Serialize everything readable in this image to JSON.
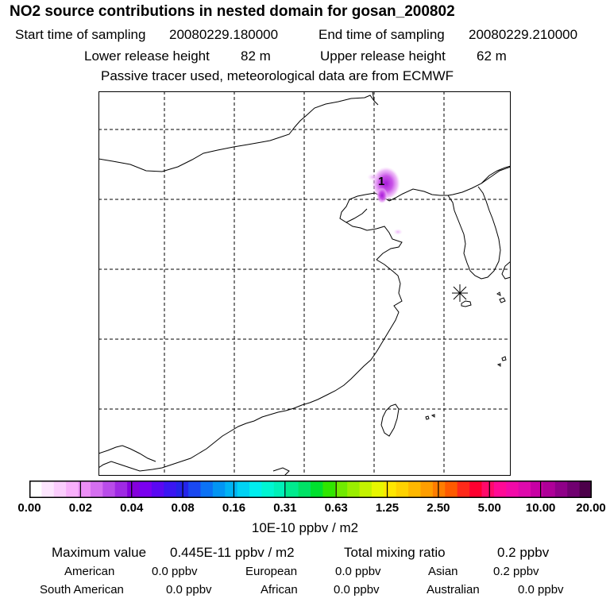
{
  "header": {
    "title": "NO2 source contributions in nested domain for gosan_200802",
    "start_label": "Start time of sampling",
    "start_value": "20080229.180000",
    "end_label": "End time of sampling",
    "end_value": "20080229.210000",
    "lower_label": "Lower release height",
    "lower_value": "82 m",
    "upper_label": "Upper release height",
    "upper_value": "62 m",
    "tracer_note": "Passive tracer used, meteorological data are from ECMWF"
  },
  "map": {
    "marker_label": "1",
    "receptor_symbol": "star"
  },
  "colorbar": {
    "tick_labels": [
      "0.00",
      "0.02",
      "0.04",
      "0.08",
      "0.16",
      "0.31",
      "0.63",
      "1.25",
      "2.50",
      "5.00",
      "10.00",
      "20.00"
    ],
    "colors": [
      "#ffffff",
      "#fde6fe",
      "#fbcdfd",
      "#f8b0fb",
      "#ec8ff6",
      "#d56ff0",
      "#b94ce9",
      "#9f2ae3",
      "#8500dd",
      "#7a00ef",
      "#5a08f2",
      "#3a16f2",
      "#2424ea",
      "#1a48f0",
      "#0b72f4",
      "#0395f3",
      "#00b3f4",
      "#00d2f4",
      "#00eeee",
      "#00f5d2",
      "#00f0b8",
      "#00eb8e",
      "#00e266",
      "#00e02e",
      "#30e600",
      "#70ea00",
      "#9aee00",
      "#c4f300",
      "#e8f700",
      "#ffe600",
      "#ffd200",
      "#ffb800",
      "#ff9e00",
      "#ff7d00",
      "#ff5a00",
      "#ff2a1a",
      "#ff0030",
      "#ff0a6a",
      "#ff0a96",
      "#f20aa8",
      "#de0aac",
      "#c800a4",
      "#ae0098",
      "#8f0088",
      "#700070",
      "#4c004a"
    ],
    "unit": "10E-10 ppbv / m2"
  },
  "summary": {
    "max_label": "Maximum value",
    "max_value": "0.445E-11 ppbv / m2",
    "total_label": "Total mixing ratio",
    "total_value": "0.2 ppbv",
    "regions": [
      {
        "name": "American",
        "value": "0.0 ppbv"
      },
      {
        "name": "European",
        "value": "0.0 ppbv"
      },
      {
        "name": "Asian",
        "value": "0.2 ppbv"
      },
      {
        "name": "South American",
        "value": "0.0 ppbv"
      },
      {
        "name": "African",
        "value": "0.0 ppbv"
      },
      {
        "name": "Australian",
        "value": "0.0 ppbv"
      }
    ]
  }
}
